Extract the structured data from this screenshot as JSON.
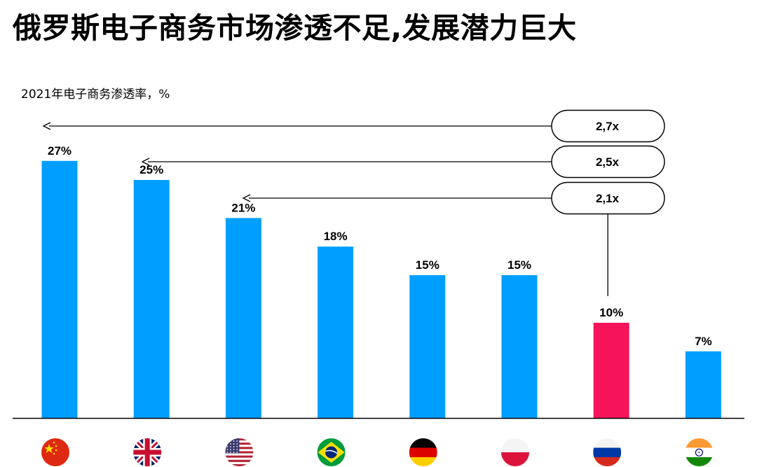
{
  "title": "俄罗斯电子商务市场渗透不足,发展潜力巨大",
  "subtitle": "2021年电子商务渗透率，%",
  "colors": {
    "default_bar": "#009FFF",
    "highlight_bar": "#F5145A",
    "axis": "#000000"
  },
  "chart_data": {
    "type": "bar",
    "title": "俄罗斯电子商务市场渗透不足,发展潜力巨大",
    "ylabel": "2021年电子商务渗透率，%",
    "ylim": [
      0,
      30
    ],
    "grid": false,
    "categories": [
      "china-flag",
      "uk-flag",
      "usa-flag",
      "brazil-flag",
      "germany-flag",
      "poland-flag",
      "russia-flag",
      "india-flag"
    ],
    "values": [
      27,
      25,
      21,
      18,
      15,
      15,
      10,
      7
    ],
    "value_labels": [
      "27%",
      "25%",
      "21%",
      "18%",
      "15%",
      "15%",
      "10%",
      "7%"
    ],
    "highlight_index": 6,
    "annotations": [
      {
        "label": "2,7x",
        "from_index": 6,
        "to_index": 0
      },
      {
        "label": "2,5x",
        "from_index": 6,
        "to_index": 1
      },
      {
        "label": "2,1x",
        "from_index": 6,
        "to_index": 2
      }
    ]
  }
}
